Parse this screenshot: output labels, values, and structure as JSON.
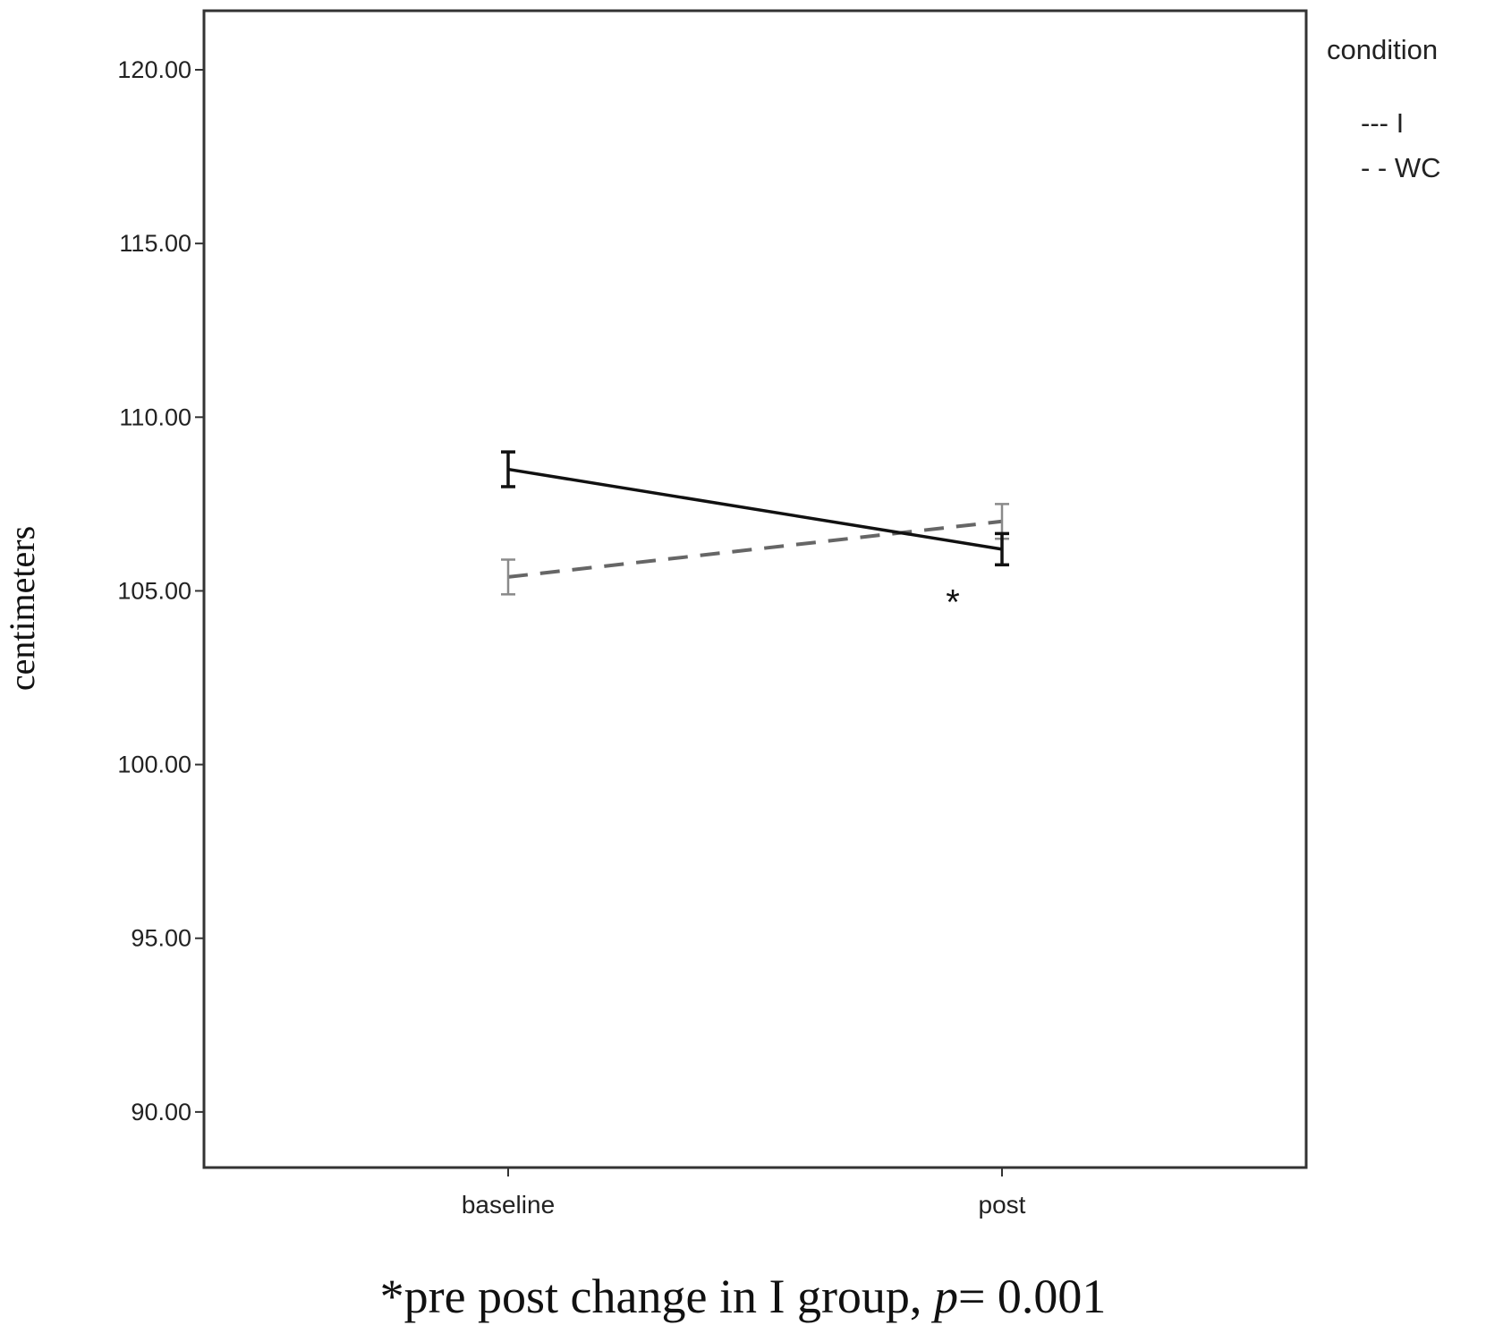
{
  "chart_data": {
    "type": "line",
    "categories": [
      "baseline",
      "post"
    ],
    "ylabel": "centimeters",
    "yticks": [
      "90.00",
      "95.00",
      "100.00",
      "105.00",
      "110.00",
      "115.00",
      "120.00"
    ],
    "ylim": [
      88.4,
      121.7
    ],
    "grid": false,
    "legend": {
      "title": "condition",
      "position": "top-right",
      "entries": [
        "--- I",
        "- - WC"
      ]
    },
    "series": [
      {
        "name": "I",
        "values": [
          108.5,
          106.2
        ],
        "error": [
          0.5,
          0.45
        ],
        "color": "#111111",
        "dashed": false
      },
      {
        "name": "WC",
        "values": [
          105.4,
          107.0
        ],
        "error": [
          0.5,
          0.5
        ],
        "color": "#8a8a8a",
        "dashed": true
      }
    ],
    "annotation": {
      "text": "*",
      "x": "post",
      "y": 105.0
    }
  },
  "caption": {
    "prefix": "*pre post change in I group, ",
    "italic": "p",
    "suffix": "= 0.001"
  }
}
